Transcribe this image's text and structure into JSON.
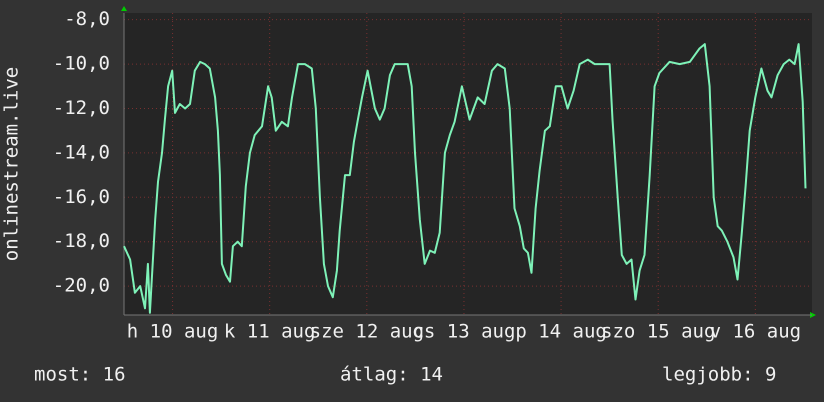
{
  "chart_data": {
    "type": "line",
    "ylabel": "onlinestream.live",
    "color": "#7ef2b8",
    "grid": true,
    "xlim": [
      0,
      170
    ],
    "ylim": [
      -21.3,
      -7.7
    ],
    "yticks": [
      {
        "value": -8,
        "label": "-8,0"
      },
      {
        "value": -10,
        "label": "-10,0"
      },
      {
        "value": -12,
        "label": "-12,0"
      },
      {
        "value": -14,
        "label": "-14,0"
      },
      {
        "value": -16,
        "label": "-16,0"
      },
      {
        "value": -18,
        "label": "-18,0"
      },
      {
        "value": -20,
        "label": "-20,0"
      }
    ],
    "xticks": [
      {
        "value": 12,
        "label": "h 10 aug"
      },
      {
        "value": 36,
        "label": "k 11 aug"
      },
      {
        "value": 60,
        "label": "sze 12 aug"
      },
      {
        "value": 84,
        "label": "cs 13 aug"
      },
      {
        "value": 108,
        "label": "p 14 aug"
      },
      {
        "value": 132,
        "label": "szo 15 aug"
      },
      {
        "value": 156,
        "label": "v 16 aug"
      }
    ],
    "x": [
      0,
      1.5,
      2.7,
      4,
      5.2,
      5.9,
      6.4,
      7.7,
      8.4,
      9.4,
      10.1,
      10.9,
      11.9,
      12.6,
      13.8,
      15.1,
      16.3,
      17.5,
      18.8,
      20,
      21.2,
      22.5,
      23.2,
      23.7,
      24.2,
      25.2,
      26.2,
      26.9,
      28.1,
      29.1,
      30.1,
      31.1,
      32.3,
      34.1,
      35.6,
      36.5,
      37.5,
      39,
      40.5,
      41.5,
      43,
      44.7,
      46.4,
      47.4,
      48.4,
      49.4,
      50.4,
      51.6,
      52.6,
      53.3,
      54.6,
      55.8,
      56.8,
      57.8,
      58.8,
      60.2,
      62,
      63.2,
      64.4,
      65.7,
      66.9,
      68.1,
      70.1,
      71.1,
      71.9,
      73.1,
      74.3,
      75.6,
      76.8,
      78,
      79.3,
      80.5,
      81.7,
      83.5,
      85.4,
      87.4,
      89.1,
      90.9,
      92.3,
      94.1,
      95.3,
      96.5,
      97.8,
      98.8,
      99.8,
      100.7,
      101.7,
      102.7,
      104,
      105.2,
      106.7,
      108.1,
      109.6,
      111.1,
      112.6,
      114.6,
      116.3,
      118.8,
      120,
      120.7,
      122,
      123,
      124.2,
      125.4,
      126.4,
      127.4,
      128.6,
      129.9,
      131.1,
      132.3,
      134.8,
      137.3,
      139.8,
      142.2,
      143.5,
      144.7,
      145.7,
      146.7,
      147.7,
      149.1,
      150.6,
      151.6,
      152.6,
      153.6,
      154.6,
      156,
      157.5,
      159,
      160,
      161.5,
      163,
      164.4,
      165.7,
      166.7,
      167.7,
      168.4
    ],
    "values": [
      -18.2,
      -18.8,
      -20.3,
      -20,
      -21,
      -19,
      -21.2,
      -17,
      -15.3,
      -14,
      -12.5,
      -11,
      -10.3,
      -12.2,
      -11.8,
      -12,
      -11.8,
      -10.3,
      -9.9,
      -10,
      -10.2,
      -11.5,
      -13,
      -15,
      -19,
      -19.5,
      -19.8,
      -18.2,
      -18,
      -18.2,
      -15.5,
      -14,
      -13.2,
      -12.8,
      -11,
      -11.5,
      -13,
      -12.6,
      -12.8,
      -11.5,
      -10,
      -10,
      -10.2,
      -12,
      -16,
      -19,
      -20,
      -20.5,
      -19.3,
      -17.5,
      -15,
      -15,
      -13.5,
      -12.5,
      -11.5,
      -10.3,
      -12,
      -12.5,
      -12,
      -10.5,
      -10,
      -10,
      -10,
      -11,
      -14,
      -17,
      -19,
      -18.4,
      -18.5,
      -17.6,
      -14,
      -13.2,
      -12.6,
      -11,
      -12.5,
      -11.5,
      -11.8,
      -10.3,
      -10,
      -10.2,
      -12,
      -16.5,
      -17.3,
      -18.3,
      -18.5,
      -19.4,
      -16.5,
      -14.8,
      -13,
      -12.8,
      -11,
      -11,
      -12,
      -11.2,
      -10,
      -9.8,
      -10,
      -10,
      -10,
      -12.5,
      -16,
      -18.6,
      -19,
      -18.8,
      -20.6,
      -19.3,
      -18.6,
      -15,
      -11,
      -10.4,
      -9.9,
      -10,
      -9.9,
      -9.3,
      -9.1,
      -11,
      -16,
      -17.3,
      -17.5,
      -18,
      -18.7,
      -19.7,
      -17.7,
      -15.5,
      -13,
      -11.5,
      -10.2,
      -11.2,
      -11.5,
      -10.5,
      -10,
      -9.8,
      -10,
      -9.1,
      -11.7,
      -15.6
    ],
    "stats": [
      "most: 16",
      "átlag: 14",
      "legjobb: 9"
    ]
  }
}
